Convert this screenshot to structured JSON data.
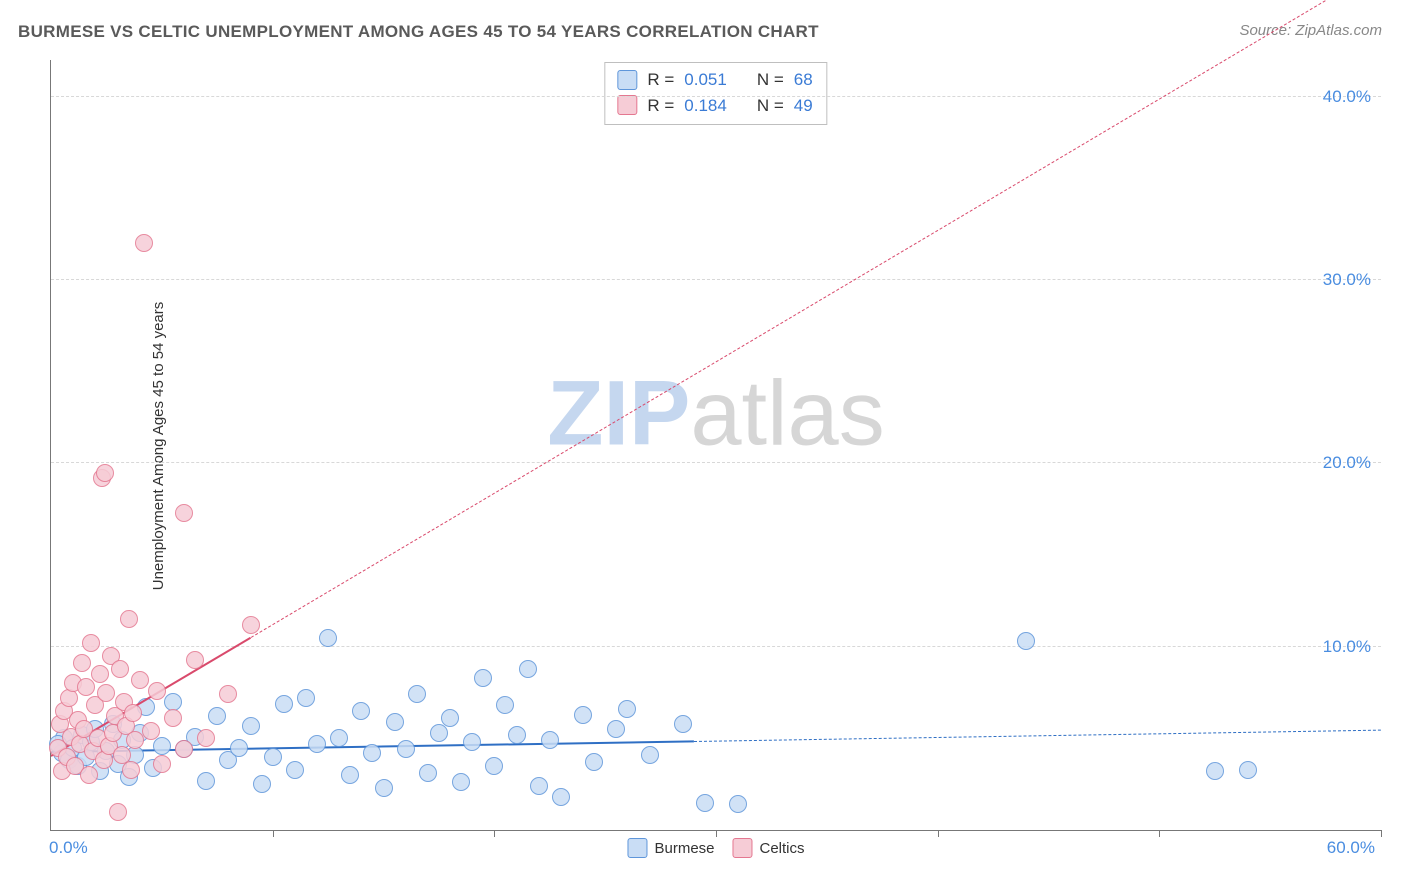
{
  "title": "BURMESE VS CELTIC UNEMPLOYMENT AMONG AGES 45 TO 54 YEARS CORRELATION CHART",
  "source": "Source: ZipAtlas.com",
  "y_axis_label": "Unemployment Among Ages 45 to 54 years",
  "watermark_a": "ZIP",
  "watermark_b": "atlas",
  "chart": {
    "type": "scatter",
    "xlim": [
      0,
      60
    ],
    "ylim": [
      0,
      42
    ],
    "x_ticks_major": [
      0,
      10,
      20,
      30,
      40,
      50,
      60
    ],
    "x_tick_labels": [
      {
        "pos": 0,
        "text": "0.0%"
      },
      {
        "pos": 60,
        "text": "60.0%"
      }
    ],
    "y_gridlines": [
      10,
      20,
      30,
      40
    ],
    "y_tick_labels": [
      {
        "pos": 10,
        "text": "10.0%"
      },
      {
        "pos": 20,
        "text": "20.0%"
      },
      {
        "pos": 30,
        "text": "30.0%"
      },
      {
        "pos": 40,
        "text": "40.0%"
      }
    ],
    "background_color": "#ffffff",
    "grid_color": "#d8d8d8",
    "axis_color": "#777777",
    "tick_label_color": "#4a8de0",
    "marker_radius": 9,
    "series": [
      {
        "name": "Burmese",
        "fill": "#c9ddf5",
        "stroke": "#5f96da",
        "trend": {
          "x1": 0,
          "y1": 4.2,
          "x2": 60,
          "y2": 5.4,
          "solid_until_x": 29,
          "color": "#2f6fc4",
          "width_solid": 2.5,
          "width_dashed": 1.5
        },
        "stats": {
          "R": "0.051",
          "N": "68"
        },
        "points": [
          [
            0.5,
            4.2
          ],
          [
            0.6,
            5.0
          ],
          [
            0.8,
            3.8
          ],
          [
            1.0,
            4.5
          ],
          [
            1.2,
            3.5
          ],
          [
            1.4,
            5.2
          ],
          [
            1.6,
            4.0
          ],
          [
            1.8,
            4.8
          ],
          [
            2.0,
            5.5
          ],
          [
            2.2,
            3.2
          ],
          [
            2.5,
            4.3
          ],
          [
            2.8,
            5.8
          ],
          [
            3.0,
            3.6
          ],
          [
            3.2,
            4.9
          ],
          [
            3.5,
            2.9
          ],
          [
            3.8,
            4.1
          ],
          [
            4.0,
            5.3
          ],
          [
            4.3,
            6.7
          ],
          [
            4.6,
            3.4
          ],
          [
            5.0,
            4.6
          ],
          [
            5.5,
            7.0
          ],
          [
            6.0,
            4.4
          ],
          [
            6.5,
            5.1
          ],
          [
            7.0,
            2.7
          ],
          [
            7.5,
            6.2
          ],
          [
            8.0,
            3.8
          ],
          [
            8.5,
            4.5
          ],
          [
            9.0,
            5.7
          ],
          [
            9.5,
            2.5
          ],
          [
            10.0,
            4.0
          ],
          [
            10.5,
            6.9
          ],
          [
            11.0,
            3.3
          ],
          [
            11.5,
            7.2
          ],
          [
            12.0,
            4.7
          ],
          [
            12.5,
            10.5
          ],
          [
            13.0,
            5.0
          ],
          [
            13.5,
            3.0
          ],
          [
            14.0,
            6.5
          ],
          [
            14.5,
            4.2
          ],
          [
            15.0,
            2.3
          ],
          [
            15.5,
            5.9
          ],
          [
            16.0,
            4.4
          ],
          [
            16.5,
            7.4
          ],
          [
            17.0,
            3.1
          ],
          [
            17.5,
            5.3
          ],
          [
            18.0,
            6.1
          ],
          [
            18.5,
            2.6
          ],
          [
            19.0,
            4.8
          ],
          [
            19.5,
            8.3
          ],
          [
            20.0,
            3.5
          ],
          [
            20.5,
            6.8
          ],
          [
            21.0,
            5.2
          ],
          [
            21.5,
            8.8
          ],
          [
            22.0,
            2.4
          ],
          [
            22.5,
            4.9
          ],
          [
            23.0,
            1.8
          ],
          [
            24.0,
            6.3
          ],
          [
            24.5,
            3.7
          ],
          [
            25.5,
            5.5
          ],
          [
            26.0,
            6.6
          ],
          [
            27.0,
            4.1
          ],
          [
            28.5,
            5.8
          ],
          [
            29.5,
            1.5
          ],
          [
            31.0,
            1.4
          ],
          [
            44.0,
            10.3
          ],
          [
            52.5,
            3.2
          ],
          [
            54.0,
            3.3
          ],
          [
            0.3,
            4.7
          ]
        ]
      },
      {
        "name": "Celtics",
        "fill": "#f6ccd6",
        "stroke": "#e47790",
        "trend": {
          "x1": 0,
          "y1": 4.0,
          "x2": 60,
          "y2": 47.0,
          "solid_until_x": 9,
          "color": "#d94a6c",
          "width_solid": 2.5,
          "width_dashed": 1.5
        },
        "stats": {
          "R": "0.184",
          "N": "49"
        },
        "points": [
          [
            0.3,
            4.5
          ],
          [
            0.4,
            5.8
          ],
          [
            0.5,
            3.2
          ],
          [
            0.6,
            6.5
          ],
          [
            0.7,
            4.0
          ],
          [
            0.8,
            7.2
          ],
          [
            0.9,
            5.1
          ],
          [
            1.0,
            8.0
          ],
          [
            1.1,
            3.5
          ],
          [
            1.2,
            6.0
          ],
          [
            1.3,
            4.7
          ],
          [
            1.4,
            9.1
          ],
          [
            1.5,
            5.5
          ],
          [
            1.6,
            7.8
          ],
          [
            1.7,
            3.0
          ],
          [
            1.8,
            10.2
          ],
          [
            1.9,
            4.3
          ],
          [
            2.0,
            6.8
          ],
          [
            2.1,
            5.0
          ],
          [
            2.2,
            8.5
          ],
          [
            2.3,
            19.2
          ],
          [
            2.4,
            3.8
          ],
          [
            2.45,
            19.5
          ],
          [
            2.5,
            7.5
          ],
          [
            2.6,
            4.6
          ],
          [
            2.7,
            9.5
          ],
          [
            2.8,
            5.3
          ],
          [
            2.9,
            6.2
          ],
          [
            3.0,
            1.0
          ],
          [
            3.1,
            8.8
          ],
          [
            3.2,
            4.1
          ],
          [
            3.3,
            7.0
          ],
          [
            3.4,
            5.7
          ],
          [
            3.5,
            11.5
          ],
          [
            3.6,
            3.3
          ],
          [
            3.7,
            6.4
          ],
          [
            3.8,
            4.9
          ],
          [
            4.0,
            8.2
          ],
          [
            4.2,
            32.0
          ],
          [
            4.5,
            5.4
          ],
          [
            4.8,
            7.6
          ],
          [
            5.0,
            3.6
          ],
          [
            5.5,
            6.1
          ],
          [
            6.0,
            4.4
          ],
          [
            6.0,
            17.3
          ],
          [
            6.5,
            9.3
          ],
          [
            7.0,
            5.0
          ],
          [
            8.0,
            7.4
          ],
          [
            9.0,
            11.2
          ]
        ]
      }
    ]
  },
  "stats_box": {
    "rows": [
      {
        "swatch_fill": "#c9ddf5",
        "swatch_stroke": "#5f96da",
        "r_label": "R =",
        "r_val": "0.051",
        "n_label": "N =",
        "n_val": "68"
      },
      {
        "swatch_fill": "#f6ccd6",
        "swatch_stroke": "#e47790",
        "r_label": "R =",
        "r_val": "0.184",
        "n_label": "N =",
        "n_val": "49"
      }
    ]
  },
  "bottom_legend": [
    {
      "swatch_fill": "#c9ddf5",
      "swatch_stroke": "#5f96da",
      "label": "Burmese"
    },
    {
      "swatch_fill": "#f6ccd6",
      "swatch_stroke": "#e47790",
      "label": "Celtics"
    }
  ]
}
